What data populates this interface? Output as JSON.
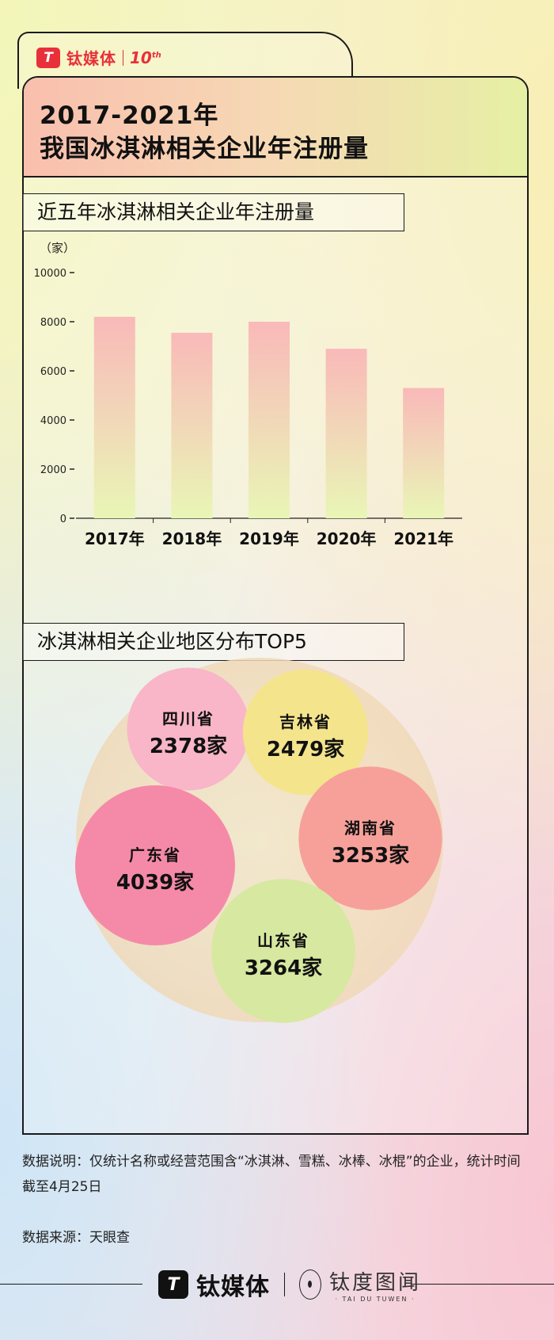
{
  "brand": {
    "logo_glyph": "T",
    "name": "钛媒体",
    "anniversary": "10",
    "anniversary_sup": "th",
    "partner_cn": "钛度图闻",
    "partner_en": "· TAI DU TUWEN ·",
    "color": "#e8303a"
  },
  "header": {
    "title_line1": "2017-2021年",
    "title_line2": "我国冰淇淋相关企业年注册量"
  },
  "section1": {
    "title": "近五年冰淇淋相关企业年注册量"
  },
  "section2": {
    "title": "冰淇淋相关企业地区分布TOP5"
  },
  "chart_data": [
    {
      "type": "bar",
      "title": "近五年冰淇淋相关企业年注册量",
      "unit_label": "（家）",
      "categories": [
        "2017年",
        "2018年",
        "2019年",
        "2020年",
        "2021年"
      ],
      "values": [
        8200,
        7550,
        8000,
        6900,
        5300
      ],
      "yticks": [
        0,
        2000,
        4000,
        6000,
        8000,
        10000
      ],
      "ylim": [
        0,
        10000
      ],
      "grid": false,
      "bar_gradient": [
        "#f9b9b9",
        "#e9f6b6"
      ]
    },
    {
      "type": "bubble",
      "title": "冰淇淋相关企业地区分布TOP5",
      "unit": "家",
      "items": [
        {
          "name": "四川省",
          "value": 2378,
          "color": "#f9b6c8"
        },
        {
          "name": "吉林省",
          "value": 2479,
          "color": "#f4e48c"
        },
        {
          "name": "湖南省",
          "value": 3253,
          "color": "#f7a09a"
        },
        {
          "name": "广东省",
          "value": 4039,
          "color": "#f58aa8"
        },
        {
          "name": "山东省",
          "value": 3264,
          "color": "#d7e8a0"
        }
      ]
    }
  ],
  "notes": {
    "desc": "数据说明：仅统计名称或经营范围含“冰淇淋、雪糕、冰棒、冰棍”的企业，统计时间截至4月25日",
    "source": "数据来源：天眼查"
  }
}
